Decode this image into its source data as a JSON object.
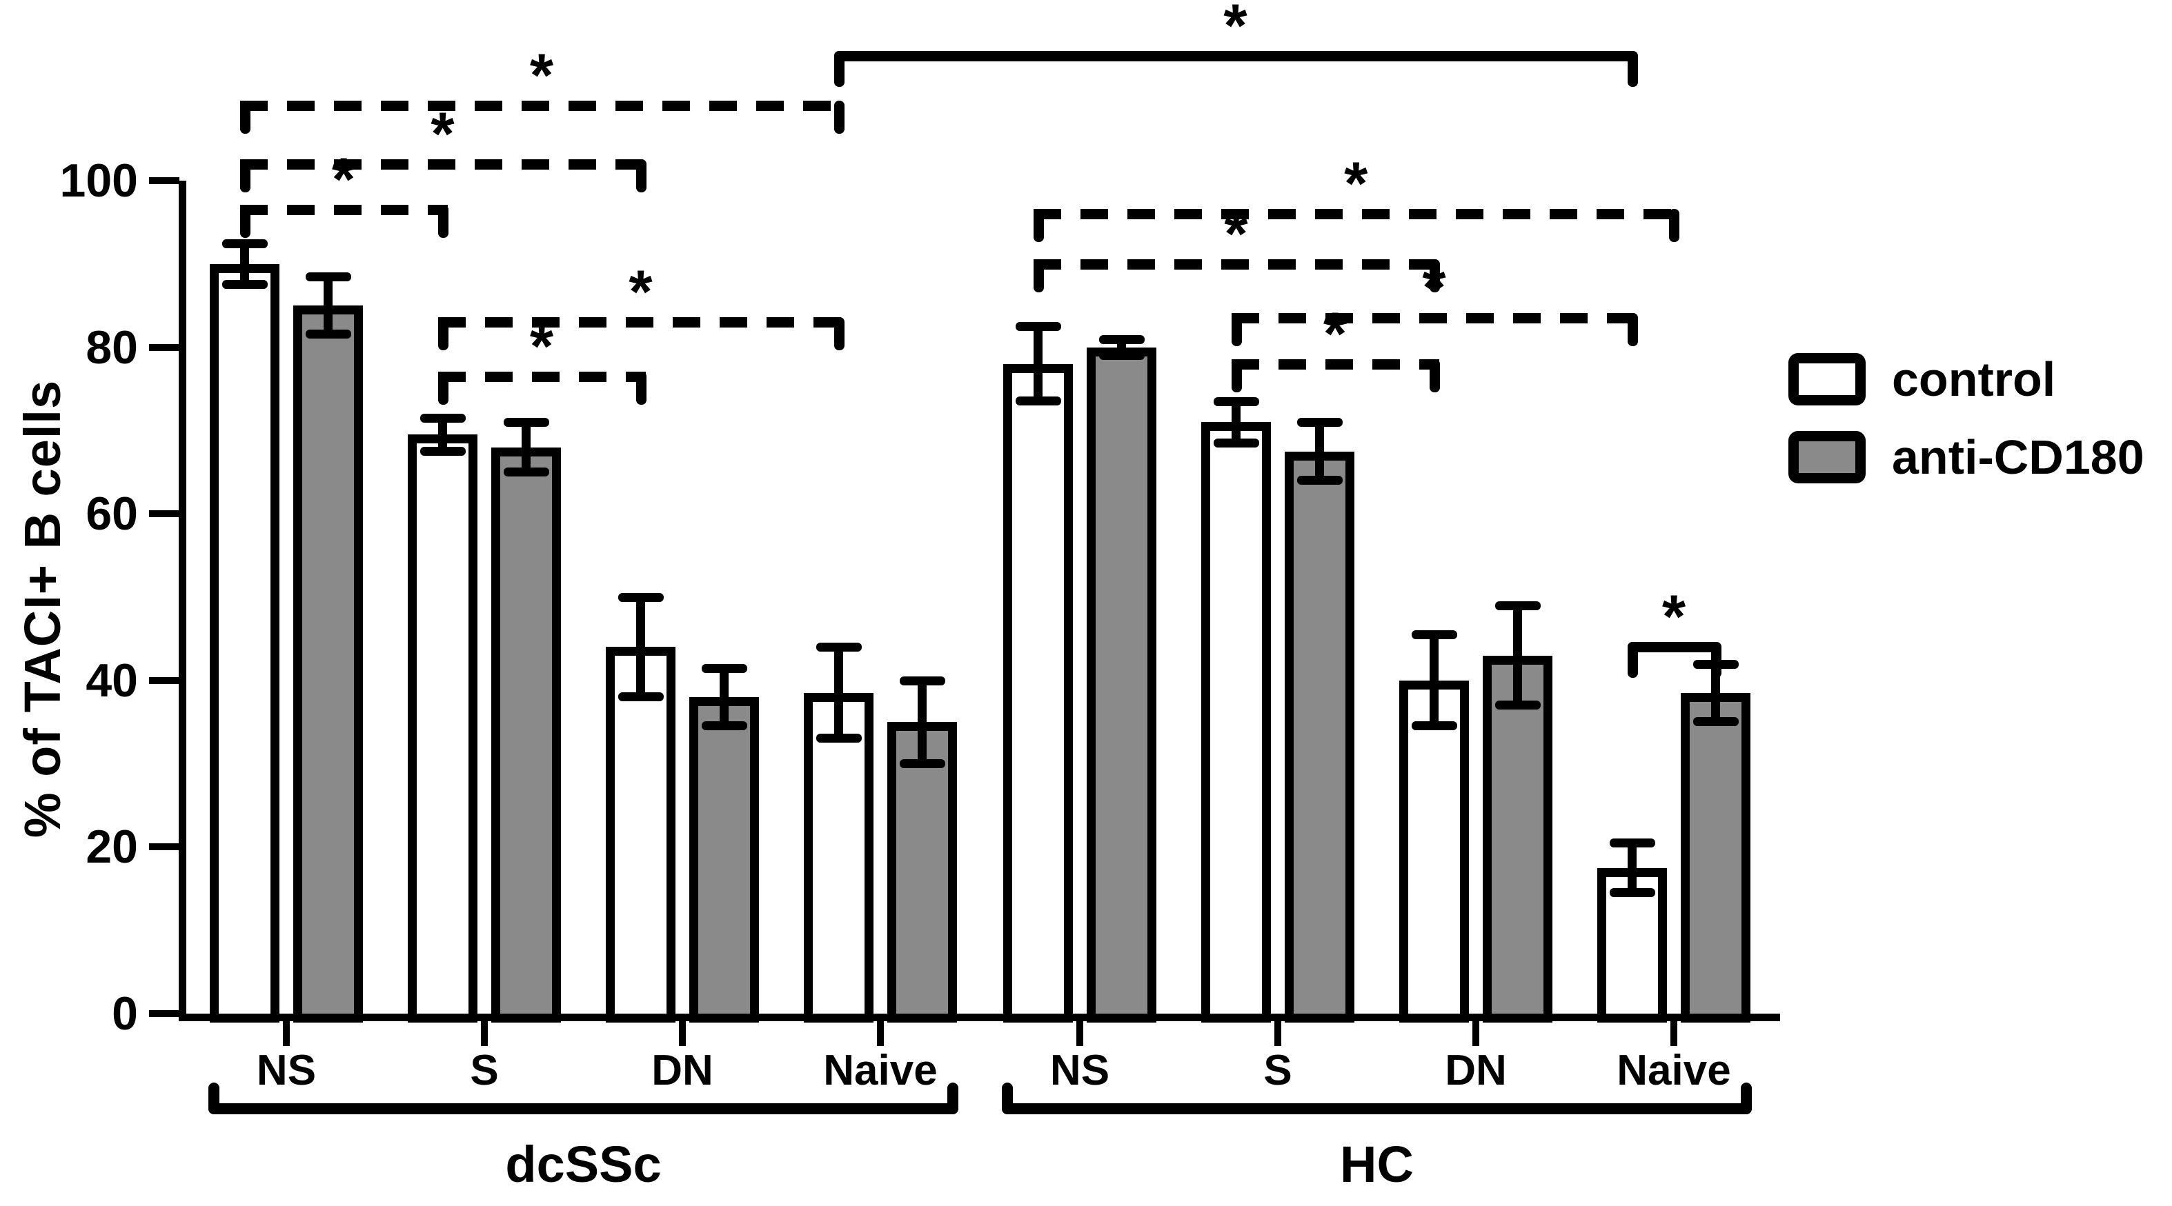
{
  "figure_type": "grouped-bar-chart-with-significance-brackets",
  "colors": {
    "background": "#ffffff",
    "stroke": "#000000",
    "control_fill": "#ffffff",
    "anti_cd180_fill": "#8a8a8a"
  },
  "legend": {
    "items": [
      {
        "label": "control",
        "fill": "#ffffff"
      },
      {
        "label": "anti-CD180",
        "fill": "#8a8a8a"
      }
    ]
  },
  "chart_data": {
    "type": "bar",
    "title": "",
    "xlabel": "",
    "ylabel": "% of TACI+ B cells",
    "ylim": [
      0,
      100
    ],
    "yticks": [
      0,
      20,
      40,
      60,
      80,
      100
    ],
    "grid": false,
    "legend_position": "right",
    "error_bars": true,
    "significance_marker": "*",
    "groups": [
      {
        "label": "dcSSc",
        "categories": [
          "NS",
          "S",
          "DN",
          "Naive"
        ],
        "series": [
          {
            "name": "control",
            "means": [
              90,
              69.5,
              44,
              38.5
            ],
            "errors": [
              2.5,
              2,
              6,
              5.5
            ]
          },
          {
            "name": "anti-CD180",
            "means": [
              85,
              68,
              38,
              35
            ],
            "errors": [
              3.5,
              3,
              3.5,
              5
            ]
          }
        ]
      },
      {
        "label": "HC",
        "categories": [
          "NS",
          "S",
          "DN",
          "Naive"
        ],
        "series": [
          {
            "name": "control",
            "means": [
              78,
              71,
              40,
              17.5
            ],
            "errors": [
              4.5,
              2.5,
              5.5,
              3
            ]
          },
          {
            "name": "anti-CD180",
            "means": [
              80,
              67.5,
              43,
              38.5
            ],
            "errors": [
              1,
              3.5,
              6,
              3.5
            ]
          }
        ]
      }
    ],
    "significance": [
      {
        "label": "*",
        "style": "dashed",
        "height": 96.5,
        "from": {
          "group": 0,
          "cat": 0,
          "bar": "control"
        },
        "to": {
          "group": 0,
          "cat": 1,
          "bar": "control"
        }
      },
      {
        "label": "*",
        "style": "dashed",
        "height": 102,
        "from": {
          "group": 0,
          "cat": 0,
          "bar": "control"
        },
        "to": {
          "group": 0,
          "cat": 2,
          "bar": "control"
        }
      },
      {
        "label": "*",
        "style": "dashed",
        "height": 109,
        "from": {
          "group": 0,
          "cat": 0,
          "bar": "control"
        },
        "to": {
          "group": 0,
          "cat": 3,
          "bar": "control"
        }
      },
      {
        "label": "*",
        "style": "dashed",
        "height": 76.5,
        "from": {
          "group": 0,
          "cat": 1,
          "bar": "control"
        },
        "to": {
          "group": 0,
          "cat": 2,
          "bar": "control"
        }
      },
      {
        "label": "*",
        "style": "dashed",
        "height": 83,
        "from": {
          "group": 0,
          "cat": 1,
          "bar": "control"
        },
        "to": {
          "group": 0,
          "cat": 3,
          "bar": "control"
        }
      },
      {
        "label": "*",
        "style": "dashed",
        "height": 90,
        "from": {
          "group": 1,
          "cat": 0,
          "bar": "control"
        },
        "to": {
          "group": 1,
          "cat": 2,
          "bar": "control"
        }
      },
      {
        "label": "*",
        "style": "dashed",
        "height": 96,
        "from": {
          "group": 1,
          "cat": 0,
          "bar": "control"
        },
        "to": {
          "group": 1,
          "cat": 3,
          "bar": "pair"
        }
      },
      {
        "label": "*",
        "style": "dashed",
        "height": 78,
        "from": {
          "group": 1,
          "cat": 1,
          "bar": "control"
        },
        "to": {
          "group": 1,
          "cat": 2,
          "bar": "control"
        }
      },
      {
        "label": "*",
        "style": "dashed",
        "height": 83.5,
        "from": {
          "group": 1,
          "cat": 1,
          "bar": "control"
        },
        "to": {
          "group": 1,
          "cat": 3,
          "bar": "control"
        }
      },
      {
        "label": "*",
        "style": "solid",
        "height": 44,
        "from": {
          "group": 1,
          "cat": 3,
          "bar": "control"
        },
        "to": {
          "group": 1,
          "cat": 3,
          "bar": "anti"
        }
      },
      {
        "label": "*",
        "style": "solid",
        "height": 115,
        "from": {
          "group": 0,
          "cat": 3,
          "bar": "control"
        },
        "to": {
          "group": 1,
          "cat": 3,
          "bar": "control"
        }
      }
    ]
  }
}
